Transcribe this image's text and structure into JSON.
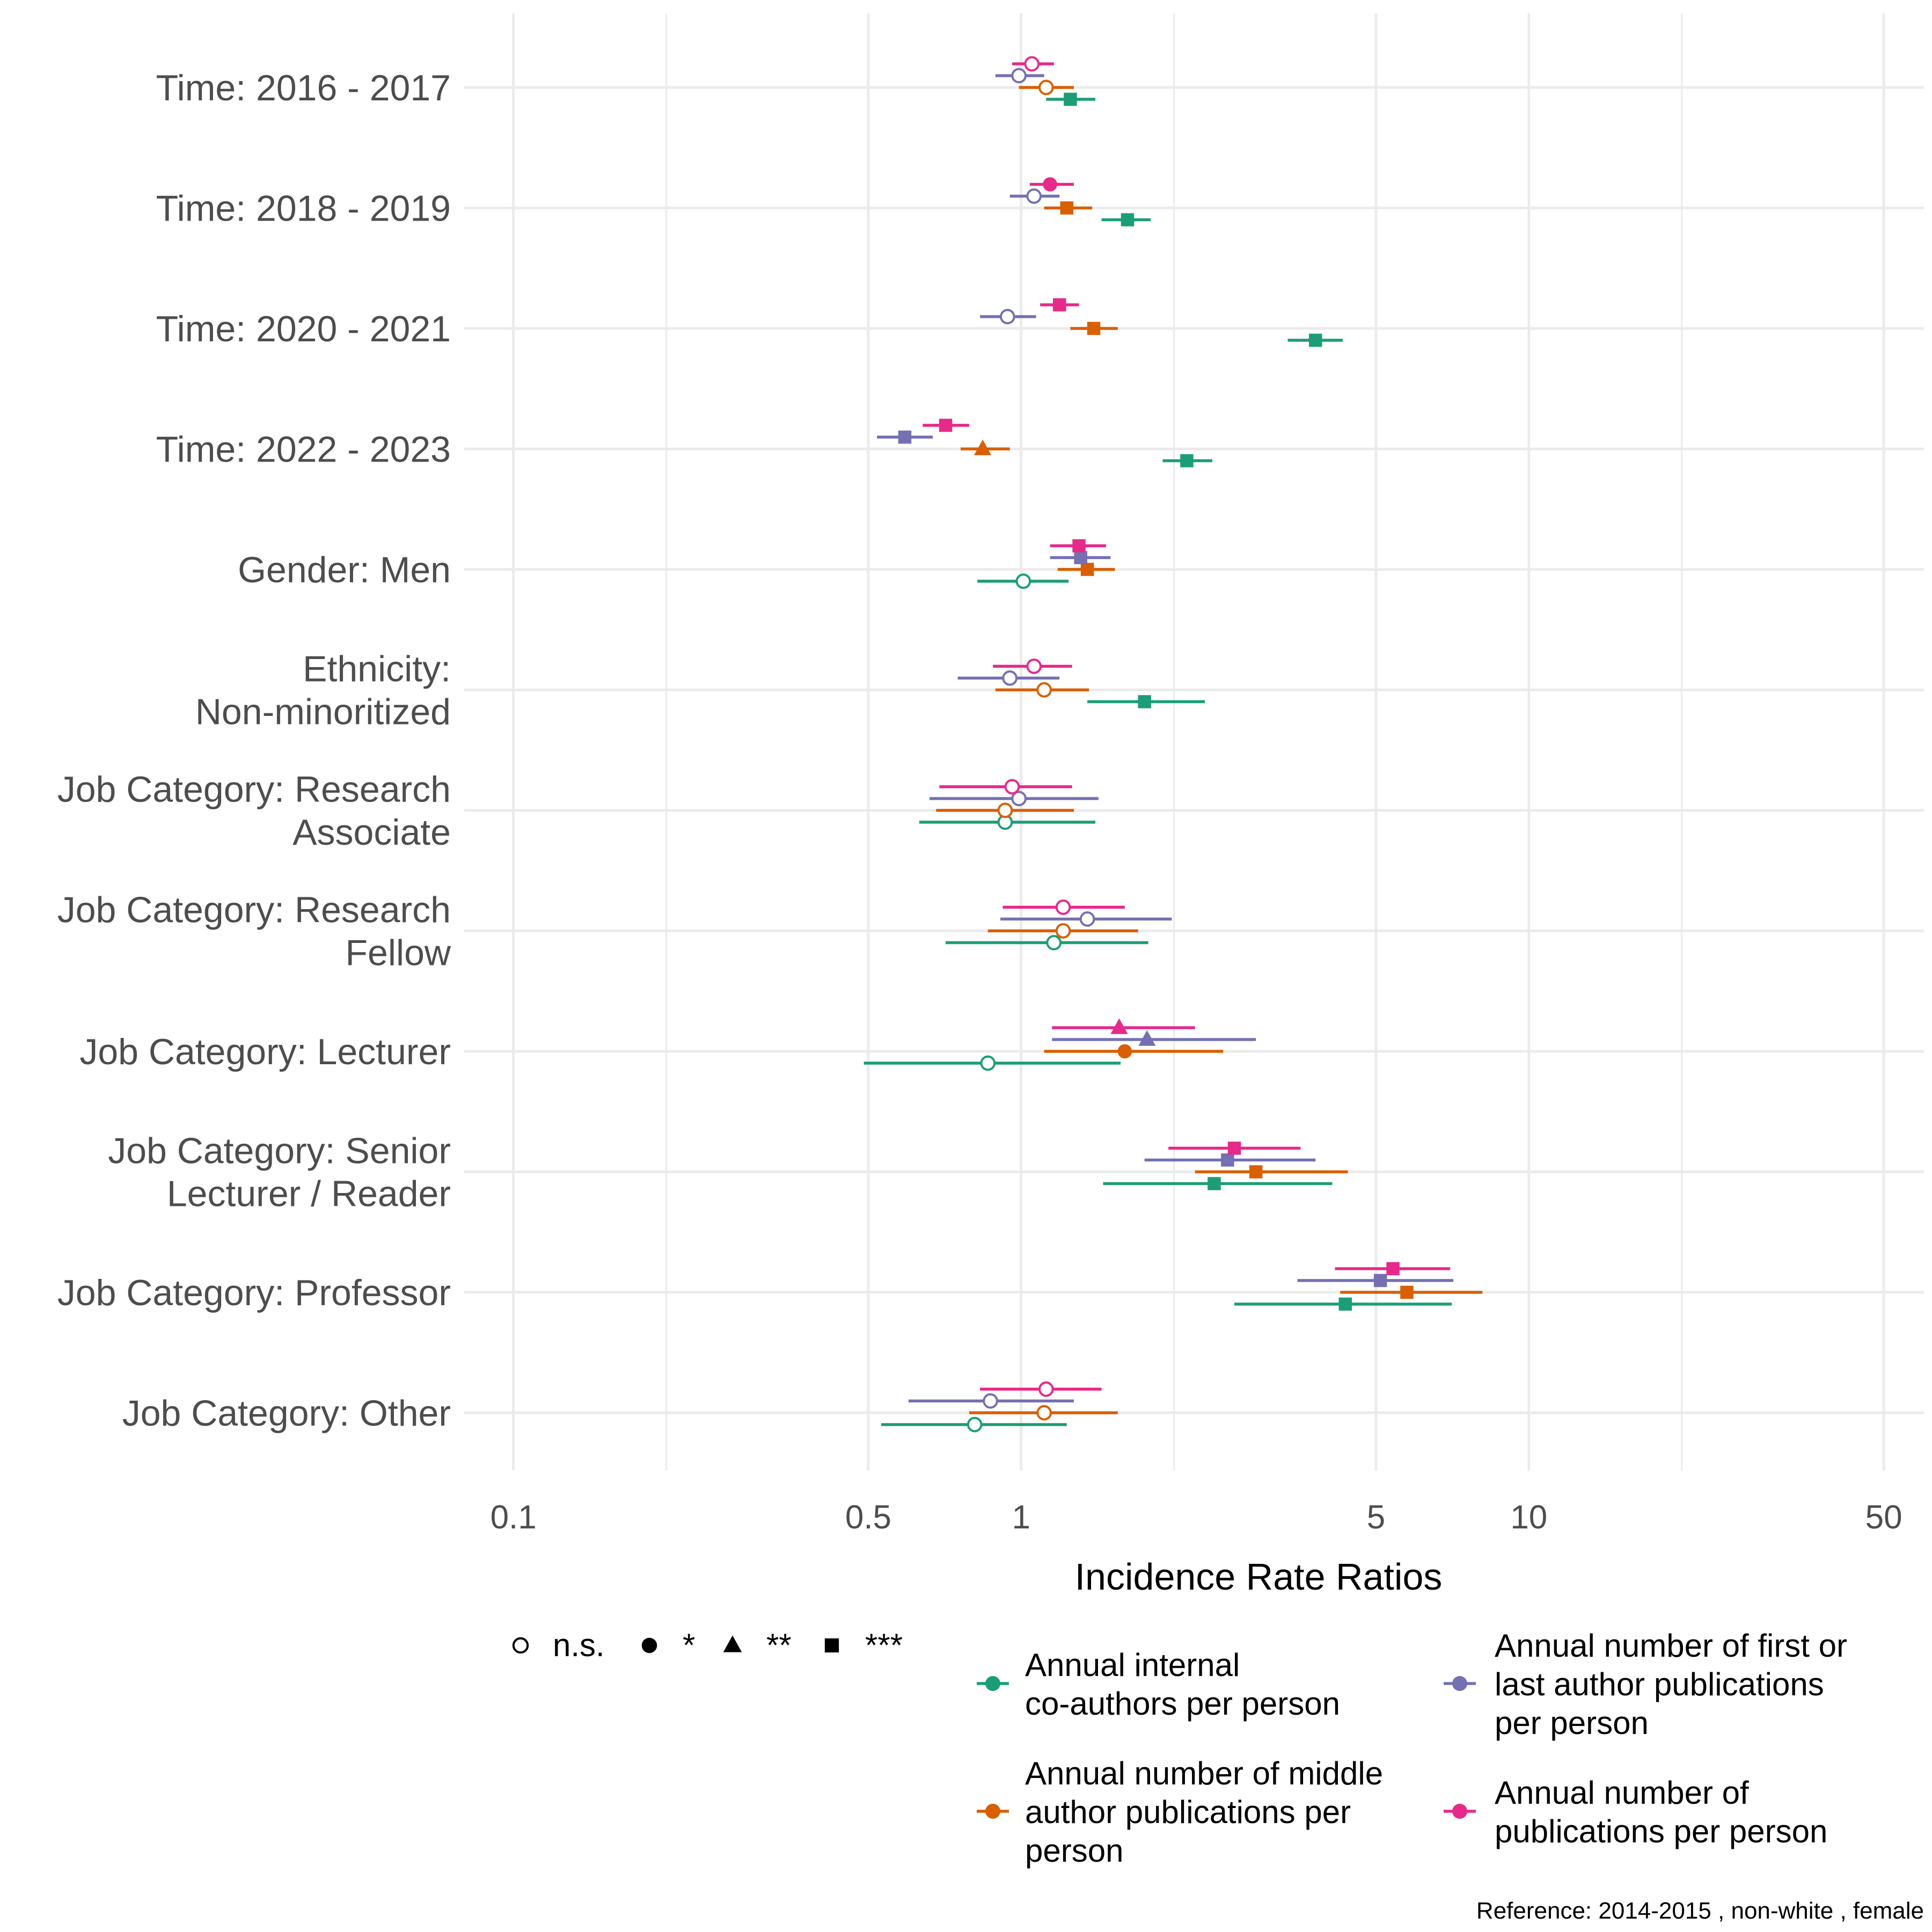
{
  "chart_data": {
    "type": "forest",
    "xlabel": "Incidence Rate Ratios",
    "x_scale": "log10",
    "xlim": [
      0.08,
      60
    ],
    "x_ticks": [
      0.1,
      0.5,
      1,
      5,
      10,
      50
    ],
    "x_tick_labels": [
      "0.1",
      "0.5",
      "1",
      "5",
      "10",
      "50"
    ],
    "grid": true,
    "categories": [
      [
        "Time: 2016 - 2017"
      ],
      [
        "Time: 2018 - 2019"
      ],
      [
        "Time: 2020 - 2021"
      ],
      [
        "Time: 2022 - 2023"
      ],
      [
        "Gender: Men"
      ],
      [
        "Ethnicity:",
        "Non-minoritized"
      ],
      [
        "Job Category: Research",
        "Associate"
      ],
      [
        "Job Category: Research",
        "Fellow"
      ],
      [
        "Job Category: Lecturer"
      ],
      [
        "Job Category: Senior",
        "Lecturer / Reader"
      ],
      [
        "Job Category: Professor"
      ],
      [
        "Job Category: Other"
      ]
    ],
    "series": [
      {
        "name": "Annual internal co-authors per person",
        "name_lines": [
          "Annual internal",
          "co-authors per person"
        ],
        "color": "#1B9E77",
        "estimates": [
          1.25,
          1.62,
          3.8,
          2.12,
          1.01,
          1.75,
          0.93,
          1.16,
          0.86,
          2.4,
          4.35,
          0.81
        ],
        "lower": [
          1.12,
          1.44,
          3.35,
          1.9,
          0.82,
          1.35,
          0.63,
          0.71,
          0.49,
          1.45,
          2.63,
          0.53
        ],
        "upper": [
          1.4,
          1.8,
          4.3,
          2.38,
          1.24,
          2.3,
          1.4,
          1.78,
          1.57,
          4.1,
          7.05,
          1.23
        ],
        "significance": [
          "***",
          "***",
          "***",
          "***",
          "n.s.",
          "***",
          "n.s.",
          "n.s.",
          "n.s.",
          "***",
          "***",
          "n.s."
        ]
      },
      {
        "name": "Annual number of middle author publications per person",
        "name_lines": [
          "Annual number of middle",
          "author publications per",
          "person"
        ],
        "color": "#D95F02",
        "estimates": [
          1.12,
          1.23,
          1.39,
          0.84,
          1.35,
          1.11,
          0.93,
          1.21,
          1.6,
          2.9,
          5.75,
          1.11
        ],
        "lower": [
          0.99,
          1.11,
          1.25,
          0.76,
          1.18,
          0.89,
          0.68,
          0.86,
          1.11,
          2.2,
          4.25,
          0.79
        ],
        "upper": [
          1.27,
          1.38,
          1.55,
          0.95,
          1.53,
          1.36,
          1.27,
          1.7,
          2.5,
          4.4,
          8.1,
          1.55
        ],
        "significance": [
          "n.s.",
          "***",
          "***",
          "**",
          "***",
          "n.s.",
          "n.s.",
          "n.s.",
          "*",
          "***",
          "***",
          "n.s."
        ]
      },
      {
        "name": "Annual number of first or last author publications per person",
        "name_lines": [
          "Annual number of first or",
          "last author publications",
          "per person"
        ],
        "color": "#7570B3",
        "estimates": [
          0.99,
          1.06,
          0.94,
          0.59,
          1.31,
          0.95,
          0.99,
          1.35,
          1.77,
          2.55,
          5.1,
          0.87
        ],
        "lower": [
          0.89,
          0.95,
          0.83,
          0.52,
          1.14,
          0.75,
          0.66,
          0.91,
          1.15,
          1.75,
          3.5,
          0.6
        ],
        "upper": [
          1.11,
          1.19,
          1.07,
          0.67,
          1.5,
          1.19,
          1.42,
          1.98,
          2.9,
          3.8,
          7.1,
          1.27
        ],
        "significance": [
          "n.s.",
          "n.s.",
          "n.s.",
          "***",
          "***",
          "n.s.",
          "n.s.",
          "n.s.",
          "**",
          "***",
          "***",
          "n.s."
        ]
      },
      {
        "name": "Annual number of publications per person",
        "name_lines": [
          "Annual number of",
          "publications per person"
        ],
        "color": "#E7298A",
        "estimates": [
          1.05,
          1.14,
          1.19,
          0.71,
          1.3,
          1.06,
          0.96,
          1.21,
          1.56,
          2.63,
          5.4,
          1.12
        ],
        "lower": [
          0.96,
          1.04,
          1.09,
          0.64,
          1.14,
          0.88,
          0.69,
          0.92,
          1.15,
          1.95,
          4.15,
          0.83
        ],
        "upper": [
          1.16,
          1.27,
          1.3,
          0.79,
          1.47,
          1.26,
          1.26,
          1.6,
          2.2,
          3.55,
          7.0,
          1.44
        ],
        "significance": [
          "n.s.",
          "*",
          "***",
          "***",
          "***",
          "n.s.",
          "n.s.",
          "n.s.",
          "**",
          "***",
          "***",
          "n.s."
        ]
      }
    ],
    "significance_legend": [
      {
        "symbol": "n.s.",
        "shape": "open-circle"
      },
      {
        "symbol": "*",
        "shape": "circle"
      },
      {
        "symbol": "**",
        "shape": "triangle"
      },
      {
        "symbol": "***",
        "shape": "square"
      }
    ],
    "legend_position": "bottom",
    "caption": "Reference: 2014-2015 ,  non-white ,  female"
  }
}
